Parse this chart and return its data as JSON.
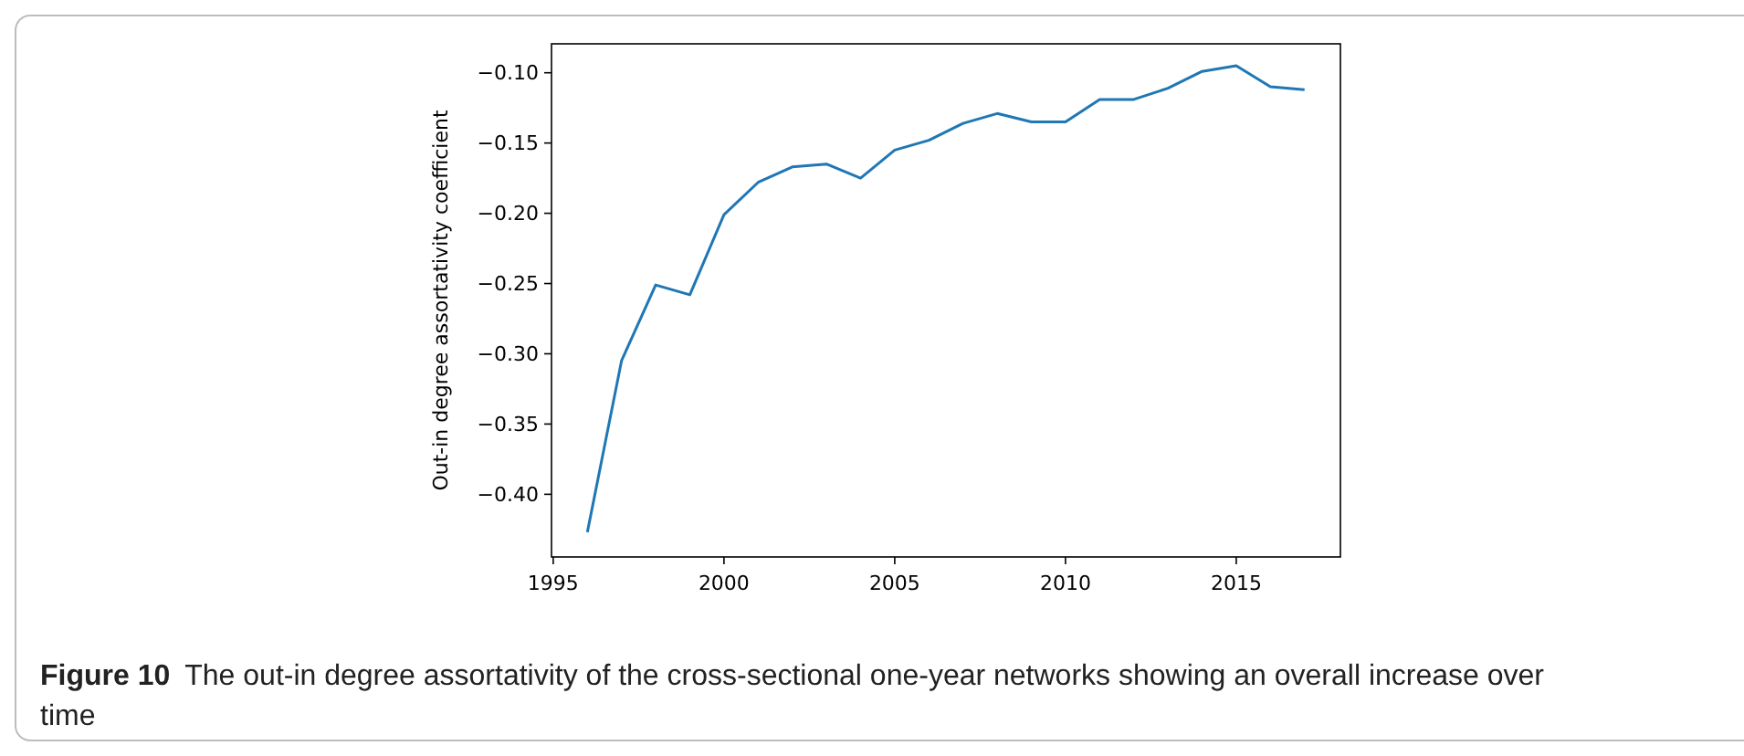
{
  "chart_data": {
    "type": "line",
    "ylabel": "Out-in degree assortativity coefficient",
    "x": [
      1996,
      1997,
      1998,
      1999,
      2000,
      2001,
      2002,
      2003,
      2004,
      2005,
      2006,
      2007,
      2008,
      2009,
      2010,
      2011,
      2012,
      2013,
      2014,
      2015,
      2016,
      2017
    ],
    "series": [
      {
        "color": "#1f77b4",
        "values": [
          -0.427,
          -0.305,
          -0.251,
          -0.258,
          -0.201,
          -0.178,
          -0.167,
          -0.165,
          -0.175,
          -0.155,
          -0.148,
          -0.136,
          -0.129,
          -0.135,
          -0.135,
          -0.119,
          -0.119,
          -0.111,
          -0.099,
          -0.095,
          -0.11,
          -0.112
        ]
      }
    ],
    "xlim": [
      1994.95,
      2018.05
    ],
    "xticks": [
      1995,
      2000,
      2005,
      2010,
      2015
    ],
    "ylim": [
      -0.4446,
      -0.0794
    ],
    "yticks": [
      {
        "value": -0.4,
        "label": "−0.40"
      },
      {
        "value": -0.35,
        "label": "−0.35"
      },
      {
        "value": -0.3,
        "label": "−0.30"
      },
      {
        "value": -0.25,
        "label": "−0.25"
      },
      {
        "value": -0.2,
        "label": "−0.20"
      },
      {
        "value": -0.15,
        "label": "−0.15"
      },
      {
        "value": -0.1,
        "label": "−0.10"
      }
    ],
    "grid": false,
    "marker": "none",
    "line_style": "solid",
    "annotations": [
      "Figure 10",
      "The out-in degree assortativity of the cross-sectional one-year networks showing an overall increase over time"
    ]
  }
}
